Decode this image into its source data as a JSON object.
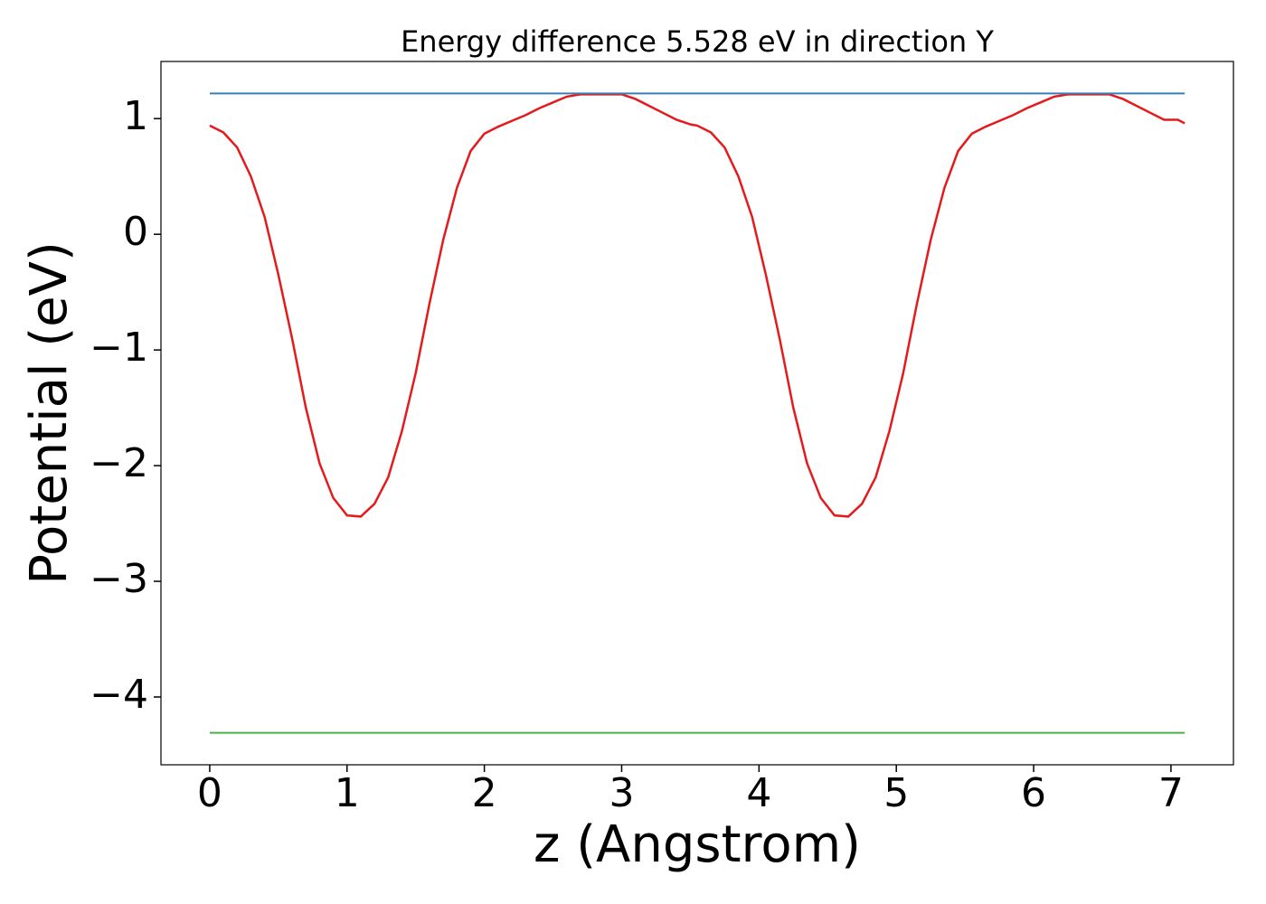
{
  "chart_data": {
    "type": "line",
    "title": "Energy difference 5.528 eV in direction Y",
    "x_label": "z (Angstrom)",
    "y_label": "Potential (eV)",
    "xlim": [
      -0.355,
      7.455
    ],
    "ylim": [
      -4.586,
      1.494
    ],
    "xticks": [
      0,
      1,
      2,
      3,
      4,
      5,
      6,
      7
    ],
    "yticks": [
      {
        "value": -4,
        "label": "−4"
      },
      {
        "value": -3,
        "label": "−3"
      },
      {
        "value": -2,
        "label": "−2"
      },
      {
        "value": -1,
        "label": "−1"
      },
      0,
      1
    ],
    "series": [
      {
        "color": "#e41a1c",
        "x": [
          0,
          0.1,
          0.2,
          0.3,
          0.4,
          0.5,
          0.6,
          0.7,
          0.8,
          0.9,
          1.0,
          1.1,
          1.2,
          1.3,
          1.4,
          1.5,
          1.6,
          1.7,
          1.8,
          1.9,
          2.0,
          2.1,
          2.2,
          2.3,
          2.4,
          2.5,
          2.6,
          2.7,
          2.8,
          2.9,
          3.0,
          3.1,
          3.2,
          3.3,
          3.4,
          3.5,
          3.55,
          3.65,
          3.75,
          3.85,
          3.95,
          4.05,
          4.15,
          4.25,
          4.35,
          4.45,
          4.55,
          4.65,
          4.75,
          4.85,
          4.95,
          5.05,
          5.15,
          5.25,
          5.35,
          5.45,
          5.55,
          5.65,
          5.75,
          5.85,
          5.95,
          6.05,
          6.15,
          6.25,
          6.35,
          6.45,
          6.55,
          6.65,
          6.75,
          6.85,
          6.95,
          7.05,
          7.1
        ],
        "values": [
          0.94,
          0.88,
          0.75,
          0.5,
          0.15,
          -0.35,
          -0.9,
          -1.5,
          -1.98,
          -2.28,
          -2.43,
          -2.44,
          -2.33,
          -2.1,
          -1.7,
          -1.2,
          -0.6,
          -0.05,
          0.4,
          0.72,
          0.87,
          0.93,
          0.98,
          1.03,
          1.09,
          1.14,
          1.19,
          1.21,
          1.21,
          1.21,
          1.21,
          1.17,
          1.11,
          1.05,
          0.99,
          0.95,
          0.94,
          0.88,
          0.75,
          0.5,
          0.15,
          -0.35,
          -0.9,
          -1.5,
          -1.98,
          -2.28,
          -2.43,
          -2.44,
          -2.33,
          -2.1,
          -1.7,
          -1.2,
          -0.6,
          -0.05,
          0.4,
          0.72,
          0.87,
          0.93,
          0.98,
          1.03,
          1.09,
          1.14,
          1.19,
          1.21,
          1.21,
          1.21,
          1.21,
          1.17,
          1.11,
          1.05,
          0.99,
          0.99,
          0.96
        ]
      },
      {
        "color": "#377eb8",
        "x": [
          0,
          7.1
        ],
        "values": [
          1.218,
          1.218
        ]
      },
      {
        "color": "#4daf4a",
        "x": [
          0,
          7.1
        ],
        "values": [
          -4.31,
          -4.31
        ]
      }
    ]
  }
}
